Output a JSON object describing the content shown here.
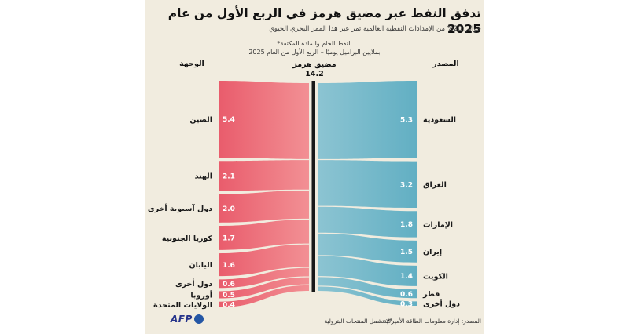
{
  "infographic": {
    "title": "تدفق النفط عبر مضيق هرمز في الربع الأول من عام 2025",
    "subtitle": "حوالي 20% من الإمدادات النفطية العالمية تمر عبر هذا الممر البحري الحيوي",
    "note_line1": "النفط الخام والمادة المكثفة*",
    "note_line2": "بملايين البراميل يوميًا – الربع الأول من العام 2025",
    "column_destination": "الوجهة",
    "column_strait": "مضيق هرمز",
    "strait_total": "14.2",
    "column_source": "المصدر",
    "footnote": "*لا تشمل المنتجات البترولية",
    "source_credit": "المصدر: إدارة معلومات الطاقة الأميركية",
    "logo_text": "AFP"
  },
  "chart_data": {
    "type": "sankey",
    "title": "تدفق النفط عبر مضيق هرمز في الربع الأول من عام 2025",
    "unit": "ملايين البراميل يوميًا - الربع الأول 2025",
    "center_node": {
      "label": "مضيق هرمز",
      "value": 14.2,
      "display": "14.2"
    },
    "sources": [
      {
        "label": "السعودية",
        "value": 5.3,
        "display": "5.3"
      },
      {
        "label": "العراق",
        "value": 3.2,
        "display": "3.2"
      },
      {
        "label": "الإمارات",
        "value": 1.8,
        "display": "1.8"
      },
      {
        "label": "إيران",
        "value": 1.5,
        "display": "1.5"
      },
      {
        "label": "الكويت",
        "value": 1.4,
        "display": "1.4"
      },
      {
        "label": "قطر",
        "value": 0.6,
        "display": "0.6"
      },
      {
        "label": "دول أخرى",
        "value": 0.3,
        "display": "0.3"
      }
    ],
    "destinations": [
      {
        "label": "الصين",
        "value": 5.4,
        "display": "5.4"
      },
      {
        "label": "الهند",
        "value": 2.1,
        "display": "2.1"
      },
      {
        "label": "دول آسيوية أخرى",
        "value": 2.0,
        "display": "2.0"
      },
      {
        "label": "كوريا الجنوبية",
        "value": 1.7,
        "display": "1.7"
      },
      {
        "label": "اليابان",
        "value": 1.6,
        "display": "1.6"
      },
      {
        "label": "دول أخرى",
        "value": 0.6,
        "display": "0.6"
      },
      {
        "label": "أوروبا",
        "value": 0.5,
        "display": "0.5"
      },
      {
        "label": "الولايات المتحدة",
        "value": 0.4,
        "display": "0.4"
      }
    ],
    "colors": {
      "destination_flow_outer": "#e95c6c",
      "destination_flow_inner": "#f29094",
      "source_flow_inner": "#8cc4d2",
      "source_flow_outer": "#62afc3",
      "center_bar": "#191919",
      "background": "#f1ecdf",
      "value_text": "#ffffff",
      "label_text": "#1a1a1a",
      "afp_blue": "#27348b"
    },
    "legend_position": "none",
    "grid": false
  }
}
